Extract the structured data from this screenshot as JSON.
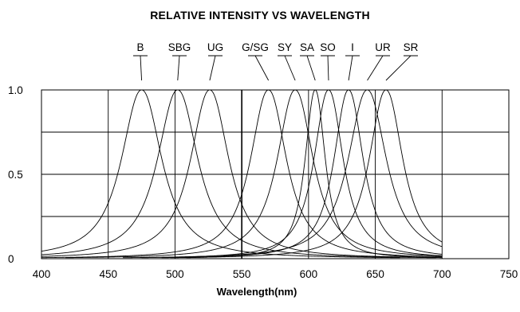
{
  "chart_data": {
    "type": "line",
    "title": "RELATIVE INTENSITY VS WAVELENGTH",
    "xlabel": "Wavelength(nm)",
    "ylabel": "",
    "xlim": [
      400,
      750
    ],
    "ylim": [
      0,
      1.0
    ],
    "x_ticks": [
      "400",
      "450",
      "500",
      "550",
      "600",
      "650",
      "700",
      "750"
    ],
    "y_ticks": [
      "0",
      "0.5",
      "1.0"
    ],
    "grid": true,
    "legend": "labels above peaks",
    "series": [
      {
        "name": "B",
        "peak": 475,
        "halfwidth": 18
      },
      {
        "name": "SBG",
        "peak": 502,
        "halfwidth": 18
      },
      {
        "name": "UG",
        "peak": 526,
        "halfwidth": 17
      },
      {
        "name": "G/SG",
        "peak": 570,
        "halfwidth": 16
      },
      {
        "name": "SY",
        "peak": 590,
        "halfwidth": 16
      },
      {
        "name": "SA",
        "peak": 605,
        "halfwidth": 9
      },
      {
        "name": "SO",
        "peak": 615,
        "halfwidth": 13
      },
      {
        "name": "I",
        "peak": 630,
        "halfwidth": 13
      },
      {
        "name": "UR",
        "peak": 644,
        "halfwidth": 17
      },
      {
        "name": "SR",
        "peak": 658,
        "halfwidth": 15
      }
    ]
  }
}
